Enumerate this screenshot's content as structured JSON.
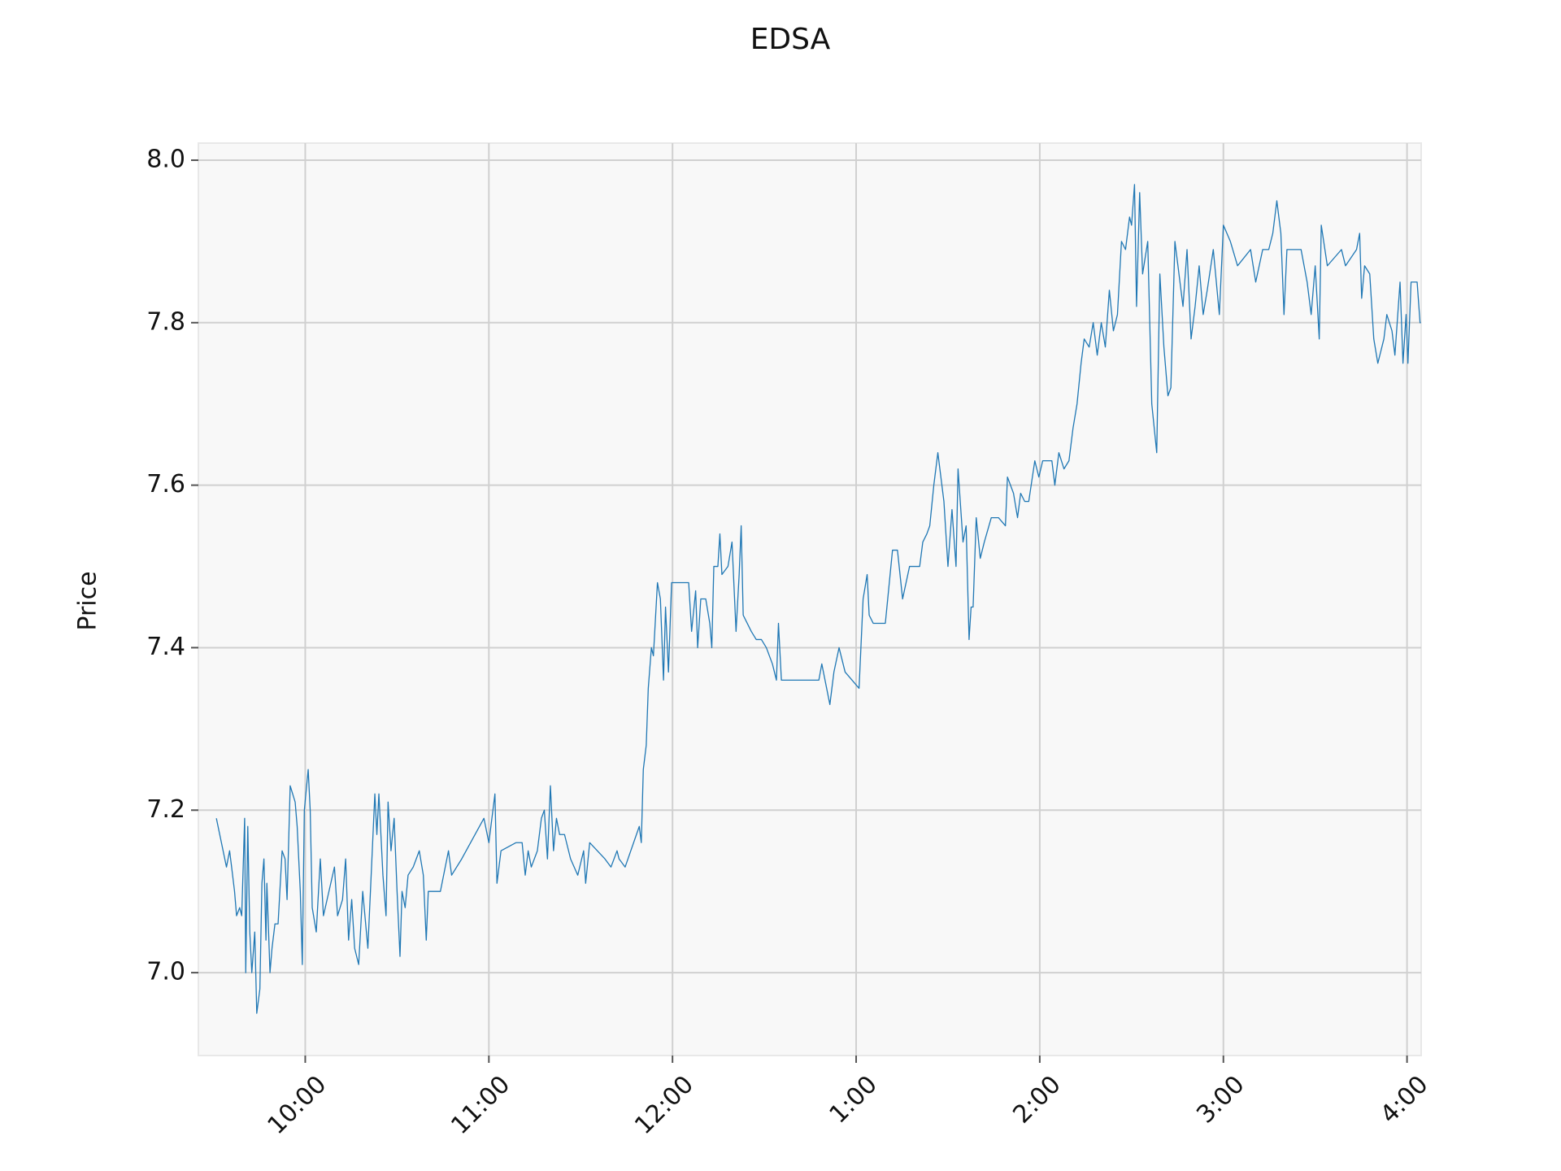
{
  "chart_data": {
    "type": "line",
    "title": "EDSA",
    "y_label": "Price",
    "color": "#1f77b4",
    "grid": true,
    "xlim": [
      9.418,
      16.077
    ],
    "ylim": [
      6.898,
      8.021
    ],
    "xticks": [
      {
        "value": 10,
        "label": "10:00"
      },
      {
        "value": 11,
        "label": "11:00"
      },
      {
        "value": 12,
        "label": "12:00"
      },
      {
        "value": 13,
        "label": "1:00"
      },
      {
        "value": 14,
        "label": "2:00"
      },
      {
        "value": 15,
        "label": "3:00"
      },
      {
        "value": 16,
        "label": "4:00"
      }
    ],
    "yticks": [
      {
        "value": 7,
        "label": "7.0"
      },
      7.2,
      7.4,
      7.6,
      {
        "value": 8,
        "label": "8.0"
      },
      7.8
    ],
    "x": [
      9.516,
      9.571,
      9.588,
      9.599,
      9.615,
      9.626,
      9.643,
      9.654,
      9.67,
      9.676,
      9.687,
      9.698,
      9.709,
      9.725,
      9.736,
      9.753,
      9.764,
      9.775,
      9.786,
      9.791,
      9.808,
      9.819,
      9.835,
      9.852,
      9.874,
      9.89,
      9.901,
      9.918,
      9.945,
      9.956,
      9.973,
      9.984,
      9.995,
      10.016,
      10.027,
      10.038,
      10.06,
      10.082,
      10.099,
      10.159,
      10.176,
      10.203,
      10.22,
      10.236,
      10.253,
      10.269,
      10.291,
      10.313,
      10.341,
      10.357,
      10.379,
      10.39,
      10.401,
      10.423,
      10.44,
      10.451,
      10.467,
      10.484,
      10.5,
      10.516,
      10.527,
      10.544,
      10.56,
      10.588,
      10.621,
      10.643,
      10.659,
      10.67,
      10.736,
      10.78,
      10.797,
      10.852,
      10.973,
      11.0,
      11.033,
      11.044,
      11.066,
      11.148,
      11.181,
      11.198,
      11.214,
      11.231,
      11.264,
      11.286,
      11.302,
      11.319,
      11.335,
      11.352,
      11.368,
      11.385,
      11.412,
      11.445,
      11.484,
      11.516,
      11.527,
      11.549,
      11.632,
      11.665,
      11.698,
      11.709,
      11.742,
      11.819,
      11.83,
      11.841,
      11.857,
      11.868,
      11.885,
      11.896,
      11.918,
      11.934,
      11.951,
      11.962,
      11.978,
      11.995,
      12.088,
      12.104,
      12.126,
      12.137,
      12.154,
      12.181,
      12.203,
      12.214,
      12.225,
      12.247,
      12.258,
      12.269,
      12.302,
      12.324,
      12.346,
      12.363,
      12.374,
      12.385,
      12.429,
      12.456,
      12.484,
      12.511,
      12.544,
      12.566,
      12.577,
      12.593,
      12.731,
      12.797,
      12.813,
      12.857,
      12.879,
      12.907,
      12.94,
      13.016,
      13.038,
      13.06,
      13.071,
      13.093,
      13.159,
      13.198,
      13.225,
      13.253,
      13.291,
      13.346,
      13.363,
      13.385,
      13.401,
      13.423,
      13.445,
      13.478,
      13.5,
      13.522,
      13.544,
      13.555,
      13.582,
      13.599,
      13.615,
      13.626,
      13.637,
      13.654,
      13.676,
      13.698,
      13.736,
      13.775,
      13.813,
      13.824,
      13.857,
      13.879,
      13.896,
      13.918,
      13.94,
      13.973,
      13.995,
      14.016,
      14.066,
      14.082,
      14.104,
      14.132,
      14.159,
      14.181,
      14.203,
      14.225,
      14.242,
      14.269,
      14.291,
      14.313,
      14.335,
      14.357,
      14.379,
      14.401,
      14.423,
      14.445,
      14.467,
      14.489,
      14.5,
      14.516,
      14.527,
      14.544,
      14.56,
      14.588,
      14.61,
      14.637,
      14.654,
      14.676,
      14.698,
      14.714,
      14.736,
      14.78,
      14.802,
      14.824,
      14.846,
      14.868,
      14.89,
      14.912,
      14.945,
      14.978,
      15.0,
      15.038,
      15.077,
      15.148,
      15.176,
      15.214,
      15.247,
      15.269,
      15.291,
      15.313,
      15.33,
      15.346,
      15.423,
      15.456,
      15.478,
      15.5,
      15.522,
      15.533,
      15.566,
      15.643,
      15.665,
      15.725,
      15.742,
      15.753,
      15.769,
      15.797,
      15.819,
      15.841,
      15.874,
      15.89,
      15.918,
      15.934,
      15.962,
      15.978,
      15.995,
      16.005,
      16.022,
      16.055,
      16.071,
      16.075
    ],
    "values": [
      7.19,
      7.13,
      7.15,
      7.13,
      7.1,
      7.07,
      7.08,
      7.07,
      7.19,
      7.0,
      7.18,
      7.05,
      7.0,
      7.05,
      6.95,
      6.98,
      7.11,
      7.14,
      7.04,
      7.11,
      7.0,
      7.03,
      7.06,
      7.06,
      7.15,
      7.14,
      7.09,
      7.23,
      7.21,
      7.18,
      7.1,
      7.01,
      7.2,
      7.25,
      7.2,
      7.08,
      7.05,
      7.14,
      7.07,
      7.13,
      7.07,
      7.09,
      7.14,
      7.04,
      7.09,
      7.03,
      7.01,
      7.1,
      7.03,
      7.11,
      7.22,
      7.17,
      7.22,
      7.12,
      7.07,
      7.21,
      7.15,
      7.19,
      7.1,
      7.02,
      7.1,
      7.08,
      7.12,
      7.13,
      7.15,
      7.12,
      7.04,
      7.1,
      7.1,
      7.15,
      7.12,
      7.14,
      7.19,
      7.16,
      7.22,
      7.11,
      7.15,
      7.16,
      7.16,
      7.12,
      7.15,
      7.13,
      7.15,
      7.19,
      7.2,
      7.14,
      7.23,
      7.15,
      7.19,
      7.17,
      7.17,
      7.14,
      7.12,
      7.15,
      7.11,
      7.16,
      7.14,
      7.13,
      7.15,
      7.14,
      7.13,
      7.18,
      7.16,
      7.25,
      7.28,
      7.35,
      7.4,
      7.39,
      7.48,
      7.46,
      7.36,
      7.45,
      7.37,
      7.48,
      7.48,
      7.42,
      7.47,
      7.4,
      7.46,
      7.46,
      7.43,
      7.4,
      7.5,
      7.5,
      7.54,
      7.49,
      7.5,
      7.53,
      7.42,
      7.49,
      7.55,
      7.44,
      7.42,
      7.41,
      7.41,
      7.4,
      7.38,
      7.36,
      7.43,
      7.36,
      7.36,
      7.36,
      7.38,
      7.33,
      7.37,
      7.4,
      7.37,
      7.35,
      7.46,
      7.49,
      7.44,
      7.43,
      7.43,
      7.52,
      7.52,
      7.46,
      7.5,
      7.5,
      7.53,
      7.54,
      7.55,
      7.6,
      7.64,
      7.58,
      7.5,
      7.57,
      7.5,
      7.62,
      7.53,
      7.55,
      7.41,
      7.45,
      7.45,
      7.56,
      7.51,
      7.53,
      7.56,
      7.56,
      7.55,
      7.61,
      7.59,
      7.56,
      7.59,
      7.58,
      7.58,
      7.63,
      7.61,
      7.63,
      7.63,
      7.6,
      7.64,
      7.62,
      7.63,
      7.67,
      7.7,
      7.75,
      7.78,
      7.77,
      7.8,
      7.76,
      7.8,
      7.77,
      7.84,
      7.79,
      7.81,
      7.9,
      7.89,
      7.93,
      7.92,
      7.97,
      7.82,
      7.96,
      7.86,
      7.9,
      7.7,
      7.64,
      7.86,
      7.77,
      7.71,
      7.72,
      7.9,
      7.82,
      7.89,
      7.78,
      7.82,
      7.87,
      7.81,
      7.84,
      7.89,
      7.81,
      7.92,
      7.9,
      7.87,
      7.89,
      7.85,
      7.89,
      7.89,
      7.91,
      7.95,
      7.91,
      7.81,
      7.89,
      7.89,
      7.85,
      7.81,
      7.87,
      7.78,
      7.92,
      7.87,
      7.89,
      7.87,
      7.89,
      7.91,
      7.83,
      7.87,
      7.86,
      7.78,
      7.75,
      7.78,
      7.81,
      7.79,
      7.76,
      7.85,
      7.75,
      7.81,
      7.75,
      7.85,
      7.85,
      7.8,
      7.8
    ]
  }
}
